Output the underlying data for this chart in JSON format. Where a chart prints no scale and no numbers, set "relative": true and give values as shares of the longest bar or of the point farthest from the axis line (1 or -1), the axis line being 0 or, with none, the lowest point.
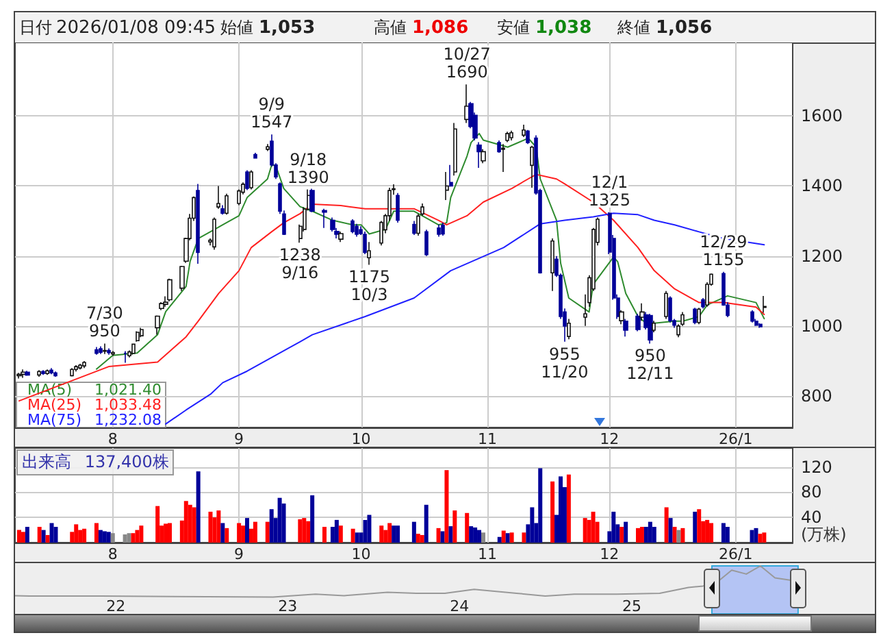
{
  "chart_data": [
    {
      "type": "candlestick",
      "x": [
        "2025-07-09",
        "2025-07-10",
        "2025-07-11",
        "2025-07-14",
        "2025-07-15",
        "2025-07-16",
        "2025-07-17",
        "2025-07-18",
        "2025-07-22",
        "2025-07-23",
        "2025-07-24",
        "2025-07-25",
        "2025-07-28",
        "2025-07-29",
        "2025-07-30",
        "2025-07-31",
        "2025-08-01",
        "2025-08-04",
        "2025-08-05",
        "2025-08-06",
        "2025-08-07",
        "2025-08-08",
        "2025-08-12",
        "2025-08-13",
        "2025-08-14",
        "2025-08-15",
        "2025-08-18",
        "2025-08-19",
        "2025-08-20",
        "2025-08-21",
        "2025-08-22",
        "2025-08-25",
        "2025-08-26",
        "2025-08-27",
        "2025-08-28",
        "2025-08-29",
        "2025-09-01",
        "2025-09-02",
        "2025-09-03",
        "2025-09-04",
        "2025-09-05",
        "2025-09-08",
        "2025-09-09",
        "2025-09-10",
        "2025-09-11",
        "2025-09-12",
        "2025-09-16",
        "2025-09-17",
        "2025-09-18",
        "2025-09-19",
        "2025-09-22",
        "2025-09-24",
        "2025-09-25",
        "2025-09-26",
        "2025-09-29",
        "2025-09-30",
        "2025-10-01",
        "2025-10-02",
        "2025-10-03",
        "2025-10-06",
        "2025-10-07",
        "2025-10-08",
        "2025-10-09",
        "2025-10-10",
        "2025-10-14",
        "2025-10-15",
        "2025-10-16",
        "2025-10-17",
        "2025-10-20",
        "2025-10-21",
        "2025-10-22",
        "2025-10-23",
        "2025-10-24",
        "2025-10-27",
        "2025-10-28",
        "2025-10-29",
        "2025-10-30",
        "2025-10-31",
        "2025-11-04",
        "2025-11-05",
        "2025-11-06",
        "2025-11-07",
        "2025-11-10",
        "2025-11-11",
        "2025-11-12",
        "2025-11-13",
        "2025-11-14",
        "2025-11-17",
        "2025-11-18",
        "2025-11-19",
        "2025-11-20",
        "2025-11-21",
        "2025-11-25",
        "2025-11-26",
        "2025-11-27",
        "2025-11-28",
        "2025-12-01",
        "2025-12-02",
        "2025-12-03",
        "2025-12-04",
        "2025-12-05",
        "2025-12-08",
        "2025-12-09",
        "2025-12-10",
        "2025-12-11",
        "2025-12-12",
        "2025-12-15",
        "2025-12-16",
        "2025-12-17",
        "2025-12-18",
        "2025-12-19",
        "2025-12-22",
        "2025-12-23",
        "2025-12-24",
        "2025-12-25",
        "2025-12-26",
        "2025-12-29",
        "2025-12-30",
        "2026-01-05",
        "2026-01-06",
        "2026-01-07",
        "2026-01-08"
      ],
      "ohlc": [
        [
          858,
          866,
          850,
          862
        ],
        [
          862,
          876,
          852,
          868
        ],
        [
          868,
          872,
          858,
          860
        ],
        [
          860,
          874,
          855,
          870
        ],
        [
          870,
          874,
          860,
          864
        ],
        [
          864,
          876,
          860,
          872
        ],
        [
          874,
          880,
          862,
          866
        ],
        [
          866,
          870,
          855,
          858
        ],
        [
          858,
          880,
          856,
          876
        ],
        [
          876,
          888,
          870,
          884
        ],
        [
          880,
          892,
          876,
          888
        ],
        [
          886,
          900,
          880,
          896
        ],
        [
          932,
          940,
          918,
          922
        ],
        [
          935,
          942,
          920,
          925
        ],
        [
          928,
          950,
          920,
          930
        ],
        [
          930,
          936,
          918,
          924
        ],
        [
          920,
          928,
          915,
          924
        ],
        [
          922,
          928,
          895,
          922
        ],
        [
          915,
          930,
          910,
          926
        ],
        [
          922,
          950,
          918,
          948
        ],
        [
          958,
          985,
          955,
          982
        ],
        [
          972,
          995,
          968,
          990
        ],
        [
          995,
          1030,
          975,
          1028
        ],
        [
          1050,
          1068,
          1045,
          1064
        ],
        [
          1062,
          1085,
          1055,
          1068
        ],
        [
          1075,
          1135,
          1070,
          1132
        ],
        [
          1108,
          1172,
          1100,
          1170
        ],
        [
          1185,
          1252,
          1180,
          1250
        ],
        [
          1250,
          1320,
          1245,
          1308
        ],
        [
          1308,
          1370,
          1300,
          1367
        ],
        [
          1387,
          1406,
          1178,
          1210
        ],
        [
          1240,
          1250,
          1230,
          1245
        ],
        [
          1226,
          1310,
          1218,
          1305
        ],
        [
          1340,
          1400,
          1335,
          1350
        ],
        [
          1335,
          1345,
          1318,
          1322
        ],
        [
          1322,
          1378,
          1318,
          1372
        ],
        [
          1350,
          1390,
          1345,
          1386
        ],
        [
          1382,
          1410,
          1376,
          1405
        ],
        [
          1440,
          1445,
          1388,
          1393
        ],
        [
          1395,
          1445,
          1390,
          1440
        ],
        [
          1490,
          1495,
          1478,
          1480
        ],
        [
          1505,
          1520,
          1500,
          1512
        ],
        [
          1528,
          1547,
          1455,
          1460
        ],
        [
          1460,
          1465,
          1420,
          1426
        ],
        [
          1406,
          1410,
          1320,
          1328
        ],
        [
          1320,
          1330,
          1260,
          1262
        ],
        [
          1250,
          1290,
          1238,
          1285
        ],
        [
          1276,
          1340,
          1270,
          1334
        ],
        [
          1334,
          1390,
          1330,
          1373
        ],
        [
          1387,
          1392,
          1325,
          1328
        ],
        [
          1330,
          1335,
          1280,
          1325
        ],
        [
          1302,
          1310,
          1270,
          1276
        ],
        [
          1270,
          1280,
          1250,
          1262
        ],
        [
          1248,
          1270,
          1240,
          1264
        ],
        [
          1300,
          1305,
          1265,
          1270
        ],
        [
          1285,
          1292,
          1255,
          1262
        ],
        [
          1275,
          1285,
          1260,
          1264
        ],
        [
          1262,
          1270,
          1205,
          1210
        ],
        [
          1195,
          1240,
          1175,
          1215
        ],
        [
          1237,
          1300,
          1230,
          1296
        ],
        [
          1275,
          1320,
          1265,
          1315
        ],
        [
          1315,
          1395,
          1300,
          1387
        ],
        [
          1390,
          1405,
          1375,
          1392
        ],
        [
          1373,
          1380,
          1295,
          1302
        ],
        [
          1290,
          1300,
          1260,
          1265
        ],
        [
          1265,
          1320,
          1258,
          1314
        ],
        [
          1320,
          1350,
          1315,
          1340
        ],
        [
          1269,
          1275,
          1200,
          1204
        ],
        [
          1280,
          1290,
          1255,
          1262
        ],
        [
          1288,
          1295,
          1258,
          1263
        ],
        [
          1388,
          1440,
          1360,
          1400
        ],
        [
          1410,
          1460,
          1398,
          1400
        ],
        [
          1440,
          1580,
          1430,
          1563
        ],
        [
          1590,
          1690,
          1580,
          1628
        ],
        [
          1635,
          1640,
          1565,
          1570
        ],
        [
          1602,
          1610,
          1530,
          1537
        ],
        [
          1517,
          1525,
          1452,
          1498
        ],
        [
          1472,
          1505,
          1465,
          1498
        ],
        [
          1524,
          1530,
          1495,
          1498
        ],
        [
          1505,
          1520,
          1440,
          1508
        ],
        [
          1530,
          1555,
          1525,
          1550
        ],
        [
          1538,
          1558,
          1530,
          1552
        ],
        [
          1545,
          1575,
          1540,
          1560
        ],
        [
          1557,
          1560,
          1520,
          1524
        ],
        [
          1459,
          1515,
          1395,
          1511
        ],
        [
          1537,
          1545,
          1375,
          1380
        ],
        [
          1387,
          1392,
          1150,
          1152
        ],
        [
          1152,
          1250,
          1100,
          1243
        ],
        [
          1191,
          1200,
          1140,
          1145
        ],
        [
          1145,
          1150,
          1020,
          1027
        ],
        [
          1040,
          1050,
          955,
          1000
        ],
        [
          970,
          1020,
          962,
          1008
        ],
        [
          1025,
          1090,
          1000,
          1035
        ],
        [
          1067,
          1145,
          1055,
          1138
        ],
        [
          1106,
          1280,
          1100,
          1276
        ],
        [
          1239,
          1310,
          1230,
          1305
        ],
        [
          1322,
          1325,
          1205,
          1211
        ],
        [
          1250,
          1260,
          1075,
          1080
        ],
        [
          1080,
          1090,
          1020,
          1027
        ],
        [
          1015,
          1045,
          1005,
          1040
        ],
        [
          1014,
          1020,
          970,
          988
        ],
        [
          1028,
          1035,
          985,
          990
        ],
        [
          1025,
          1065,
          1015,
          1040
        ],
        [
          1032,
          1040,
          990,
          996
        ],
        [
          1030,
          1035,
          950,
          960
        ],
        [
          988,
          1015,
          982,
          1008
        ],
        [
          1027,
          1100,
          1020,
          1093
        ],
        [
          1080,
          1085,
          1010,
          1015
        ],
        [
          1015,
          1020,
          995,
          1002
        ],
        [
          975,
          1005,
          968,
          1000
        ],
        [
          1005,
          1040,
          1000,
          1032
        ],
        [
          1048,
          1052,
          1005,
          1010
        ],
        [
          1010,
          1052,
          1005,
          1048
        ],
        [
          1075,
          1080,
          1050,
          1055
        ],
        [
          1060,
          1125,
          1055,
          1119
        ],
        [
          1119,
          1150,
          1115,
          1148
        ],
        [
          1150,
          1155,
          1058,
          1060
        ],
        [
          1060,
          1068,
          1025,
          1030
        ],
        [
          1040,
          1045,
          1010,
          1014
        ],
        [
          1014,
          1020,
          1000,
          1002
        ],
        [
          1005,
          1008,
          995,
          998
        ],
        [
          1053,
          1086,
          1038,
          1056
        ]
      ],
      "series": [
        {
          "name": "MA(5)",
          "type": "line",
          "color": "#2e8b2e",
          "x": [
            "2025-07-28",
            "2025-08-01",
            "2025-08-07",
            "2025-08-12",
            "2025-08-14",
            "2025-08-19",
            "2025-08-20",
            "2025-08-22",
            "2025-08-26",
            "2025-08-28",
            "2025-09-01",
            "2025-09-03",
            "2025-09-08",
            "2025-09-09",
            "2025-09-10",
            "2025-09-12",
            "2025-09-16",
            "2025-09-19",
            "2025-09-24",
            "2025-09-29",
            "2025-10-01",
            "2025-10-03",
            "2025-10-07",
            "2025-10-09",
            "2025-10-14",
            "2025-10-16",
            "2025-10-20",
            "2025-10-22",
            "2025-10-23",
            "2025-10-27",
            "2025-10-28",
            "2025-10-30",
            "2025-10-31",
            "2025-11-06",
            "2025-11-10",
            "2025-11-11",
            "2025-11-13",
            "2025-11-14",
            "2025-11-18",
            "2025-11-19",
            "2025-11-21",
            "2025-11-26",
            "2025-11-27",
            "2025-12-02",
            "2025-12-03",
            "2025-12-05",
            "2025-12-08",
            "2025-12-10",
            "2025-12-12",
            "2025-12-17",
            "2025-12-19",
            "2025-12-23",
            "2025-12-25",
            "2025-12-30",
            "2026-01-06",
            "2026-01-08"
          ],
          "values": [
            877,
            916,
            923,
            975,
            1041,
            1113,
            1185,
            1250,
            1276,
            1289,
            1315,
            1367,
            1420,
            1459,
            1459,
            1393,
            1341,
            1328,
            1302,
            1289,
            1289,
            1263,
            1276,
            1328,
            1328,
            1315,
            1289,
            1295,
            1367,
            1485,
            1524,
            1550,
            1531,
            1511,
            1531,
            1537,
            1511,
            1420,
            1302,
            1180,
            1080,
            1040,
            1119,
            1197,
            1184,
            1093,
            1027,
            1008,
            1008,
            1014,
            1014,
            1027,
            1060,
            1086,
            1067,
            1021
          ]
        },
        {
          "name": "MA(25)",
          "type": "line",
          "color": "#ff2020",
          "x": [
            "2025-07-09",
            "2025-07-31",
            "2025-08-12",
            "2025-08-19",
            "2025-08-22",
            "2025-08-27",
            "2025-09-01",
            "2025-09-04",
            "2025-09-09",
            "2025-09-12",
            "2025-09-16",
            "2025-09-19",
            "2025-09-26",
            "2025-10-02",
            "2025-10-07",
            "2025-10-14",
            "2025-10-20",
            "2025-10-22",
            "2025-10-27",
            "2025-10-31",
            "2025-11-07",
            "2025-11-11",
            "2025-11-13",
            "2025-11-18",
            "2025-11-20",
            "2025-11-27",
            "2025-12-02",
            "2025-12-08",
            "2025-12-12",
            "2025-12-17",
            "2025-12-23",
            "2025-12-29",
            "2026-01-06",
            "2026-01-08"
          ],
          "values": [
            786,
            884,
            897,
            969,
            1014,
            1093,
            1158,
            1224,
            1269,
            1295,
            1321,
            1348,
            1344,
            1335,
            1335,
            1335,
            1302,
            1289,
            1315,
            1354,
            1393,
            1420,
            1433,
            1420,
            1406,
            1354,
            1302,
            1224,
            1158,
            1106,
            1067,
            1067,
            1054,
            1033
          ]
        },
        {
          "name": "MA(75)",
          "type": "line",
          "color": "#2020ff",
          "x": [
            "2025-08-14",
            "2025-08-19",
            "2025-08-25",
            "2025-08-28",
            "2025-09-03",
            "2025-09-09",
            "2025-09-16",
            "2025-09-19",
            "2025-10-02",
            "2025-10-14",
            "2025-10-23",
            "2025-11-05",
            "2025-11-14",
            "2025-11-20",
            "2025-11-27",
            "2025-12-02",
            "2025-12-08",
            "2025-12-12",
            "2025-12-17",
            "2025-12-23",
            "2025-12-29",
            "2026-01-08"
          ],
          "values": [
            720,
            760,
            805,
            838,
            871,
            910,
            955,
            975,
            1027,
            1080,
            1158,
            1224,
            1292,
            1302,
            1312,
            1322,
            1318,
            1302,
            1289,
            1269,
            1250,
            1232
          ]
        }
      ],
      "xlim": [
        "2025-07-08",
        "2026-01-15"
      ],
      "xticks": [
        {
          "value": "2025-08-01",
          "label": "8"
        },
        {
          "value": "2025-09-01",
          "label": "9"
        },
        {
          "value": "2025-10-01",
          "label": "10"
        },
        {
          "value": "2025-11-01",
          "label": "11"
        },
        {
          "value": "2025-12-01",
          "label": "12"
        },
        {
          "value": "2026-01-01",
          "label": "26/1"
        }
      ],
      "ylim": [
        710,
        1810
      ],
      "yticks": [
        800,
        1000,
        1200,
        1400,
        1600
      ],
      "grid": true,
      "legend": "bottom left",
      "marker": "none",
      "annotations": [
        "日付 2026/01/08 09:45",
        "始値 1,053",
        "高値 1,086",
        "安値 1,038",
        "終値 1,056",
        "1,021.40",
        "1,033.48",
        "1,232.08",
        {
          "text": "7/30\n950",
          "x": "2025-07-30",
          "y": 950
        },
        {
          "text": "9/9\n1547",
          "x": "2025-09-09",
          "y": 1547
        },
        {
          "text": "9/18\n1390",
          "x": "2025-09-18",
          "y": 1390
        },
        {
          "text": "1238\n9/16",
          "x": "2025-09-16",
          "y": 1238
        },
        {
          "text": "1175\n10/3",
          "x": "2025-10-03",
          "y": 1175
        },
        {
          "text": "10/27\n1690",
          "x": "2025-10-27",
          "y": 1690
        },
        {
          "text": "955\n11/20",
          "x": "2025-11-20",
          "y": 955
        },
        {
          "text": "12/1\n1325",
          "x": "2025-12-01",
          "y": 1325
        },
        {
          "text": "950\n12/11",
          "x": "2025-12-11",
          "y": 950
        },
        {
          "text": "12/29\n1155",
          "x": "2025-12-29",
          "y": 1155
        }
      ]
    },
    {
      "type": "bar",
      "x": [
        "2025-07-09",
        "2025-07-10",
        "2025-07-11",
        "2025-07-14",
        "2025-07-15",
        "2025-07-16",
        "2025-07-17",
        "2025-07-18",
        "2025-07-22",
        "2025-07-23",
        "2025-07-24",
        "2025-07-25",
        "2025-07-28",
        "2025-07-29",
        "2025-07-30",
        "2025-07-31",
        "2025-08-01",
        "2025-08-04",
        "2025-08-05",
        "2025-08-06",
        "2025-08-07",
        "2025-08-08",
        "2025-08-12",
        "2025-08-13",
        "2025-08-14",
        "2025-08-15",
        "2025-08-18",
        "2025-08-19",
        "2025-08-20",
        "2025-08-21",
        "2025-08-22",
        "2025-08-25",
        "2025-08-26",
        "2025-08-27",
        "2025-08-28",
        "2025-08-29",
        "2025-09-01",
        "2025-09-02",
        "2025-09-03",
        "2025-09-04",
        "2025-09-05",
        "2025-09-08",
        "2025-09-09",
        "2025-09-10",
        "2025-09-11",
        "2025-09-12",
        "2025-09-16",
        "2025-09-17",
        "2025-09-18",
        "2025-09-19",
        "2025-09-22",
        "2025-09-24",
        "2025-09-25",
        "2025-09-26",
        "2025-09-29",
        "2025-09-30",
        "2025-10-01",
        "2025-10-02",
        "2025-10-03",
        "2025-10-06",
        "2025-10-07",
        "2025-10-08",
        "2025-10-09",
        "2025-10-10",
        "2025-10-14",
        "2025-10-15",
        "2025-10-16",
        "2025-10-17",
        "2025-10-20",
        "2025-10-21",
        "2025-10-22",
        "2025-10-23",
        "2025-10-24",
        "2025-10-27",
        "2025-10-28",
        "2025-10-29",
        "2025-10-30",
        "2025-10-31",
        "2025-11-04",
        "2025-11-05",
        "2025-11-06",
        "2025-11-07",
        "2025-11-10",
        "2025-11-11",
        "2025-11-12",
        "2025-11-13",
        "2025-11-14",
        "2025-11-17",
        "2025-11-18",
        "2025-11-19",
        "2025-11-20",
        "2025-11-21",
        "2025-11-25",
        "2025-11-26",
        "2025-11-27",
        "2025-11-28",
        "2025-12-01",
        "2025-12-02",
        "2025-12-03",
        "2025-12-04",
        "2025-12-05",
        "2025-12-08",
        "2025-12-09",
        "2025-12-10",
        "2025-12-11",
        "2025-12-12",
        "2025-12-15",
        "2025-12-16",
        "2025-12-17",
        "2025-12-18",
        "2025-12-19",
        "2025-12-22",
        "2025-12-23",
        "2025-12-24",
        "2025-12-25",
        "2025-12-26",
        "2025-12-29",
        "2025-12-30",
        "2026-01-05",
        "2026-01-06",
        "2026-01-07",
        "2026-01-08"
      ],
      "values": [
        20,
        17,
        25,
        25,
        20,
        12,
        31,
        25,
        17,
        29,
        20,
        22,
        31,
        20,
        18,
        17,
        15,
        13,
        15,
        15,
        20,
        27,
        58,
        27,
        30,
        31,
        35,
        66,
        60,
        56,
        113,
        49,
        40,
        51,
        31,
        23,
        31,
        27,
        39,
        22,
        33,
        33,
        53,
        39,
        71,
        62,
        37,
        39,
        34,
        75,
        25,
        25,
        36,
        27,
        22,
        16,
        16,
        36,
        44,
        27,
        20,
        31,
        27,
        27,
        33,
        14,
        12,
        60,
        23,
        18,
        115,
        26,
        51,
        47,
        26,
        24,
        20,
        16,
        9,
        19,
        15,
        16,
        16,
        29,
        56,
        31,
        118,
        97,
        44,
        105,
        88,
        108,
        39,
        36,
        49,
        33,
        18,
        49,
        29,
        25,
        33,
        23,
        25,
        25,
        33,
        25,
        56,
        39,
        25,
        20,
        23,
        49,
        53,
        34,
        36,
        31,
        31,
        25,
        20,
        23,
        14,
        16
      ],
      "colors": [
        "#ff0000",
        "#ff0000",
        "#000099",
        "#ff0000",
        "#000099",
        "#ff0000",
        "#000099",
        "#000099",
        "#ff0000",
        "#ff0000",
        "#ff0000",
        "#ff0000",
        "#ff0000",
        "#000099",
        "#000099",
        "#000099",
        "#888888",
        "#888888",
        "#888888",
        "#ff0000",
        "#ff0000",
        "#ff0000",
        "#ff0000",
        "#ff0000",
        "#ff0000",
        "#ff0000",
        "#ff0000",
        "#ff0000",
        "#ff0000",
        "#ff0000",
        "#000099",
        "#ff0000",
        "#ff0000",
        "#ff0000",
        "#000099",
        "#ff0000",
        "#ff0000",
        "#ff0000",
        "#000099",
        "#ff0000",
        "#ff0000",
        "#ff0000",
        "#000099",
        "#000099",
        "#000099",
        "#000099",
        "#ff0000",
        "#ff0000",
        "#ff0000",
        "#000099",
        "#ff0000",
        "#000099",
        "#000099",
        "#ff0000",
        "#ff0000",
        "#000099",
        "#000099",
        "#000099",
        "#000099",
        "#ff0000",
        "#ff0000",
        "#ff0000",
        "#000099",
        "#000099",
        "#000099",
        "#ff0000",
        "#ff0000",
        "#000099",
        "#ff0000",
        "#000099",
        "#ff0000",
        "#000099",
        "#ff0000",
        "#ff0000",
        "#000099",
        "#000099",
        "#000099",
        "#888888",
        "#000099",
        "#ff0000",
        "#000099",
        "#ff0000",
        "#ff0000",
        "#000099",
        "#000099",
        "#000099",
        "#000099",
        "#ff0000",
        "#000099",
        "#000099",
        "#000099",
        "#ff0000",
        "#ff0000",
        "#ff0000",
        "#ff0000",
        "#ff0000",
        "#000099",
        "#000099",
        "#000099",
        "#ff0000",
        "#000099",
        "#ff0000",
        "#ff0000",
        "#000099",
        "#000099",
        "#000099",
        "#ff0000",
        "#000099",
        "#ff0000",
        "#888888",
        "#ff0000",
        "#000099",
        "#ff0000",
        "#ff0000",
        "#ff0000",
        "#ff0000",
        "#000099",
        "#000099",
        "#000099",
        "#000099",
        "#ff0000",
        "#ff0000"
      ],
      "xlim": [
        "2025-07-08",
        "2026-01-15"
      ],
      "xticks": [
        {
          "value": "2025-08-01",
          "label": "8"
        },
        {
          "value": "2025-09-01",
          "label": "9"
        },
        {
          "value": "2025-10-01",
          "label": "10"
        },
        {
          "value": "2025-11-01",
          "label": "11"
        },
        {
          "value": "2025-12-01",
          "label": "12"
        },
        {
          "value": "2026-01-01",
          "label": "26/1"
        }
      ],
      "ylim": [
        0,
        150
      ],
      "yticks": [
        40,
        80,
        120
      ],
      "ylabel": "(万株)",
      "grid": true,
      "annotations": [
        "出来高 137,400株"
      ]
    },
    {
      "type": "line",
      "relative": true,
      "color": "#999999",
      "x": [
        "2021-06",
        "2021-07",
        "2021-12",
        "2022-12",
        "2023-03",
        "2023-05",
        "2023-08",
        "2023-10",
        "2023-12",
        "2024-02",
        "2024-05",
        "2024-07",
        "2024-09",
        "2024-12",
        "2025-03",
        "2025-05",
        "2025-06",
        "2025-07",
        "2025-08",
        "2025-09",
        "2025-10",
        "2025-11",
        "2026-01"
      ],
      "values": [
        0.38,
        0.37,
        0.37,
        0.35,
        0.41,
        0.38,
        0.45,
        0.43,
        0.43,
        0.51,
        0.43,
        0.37,
        0.41,
        0.41,
        0.43,
        0.55,
        0.58,
        0.66,
        0.91,
        0.83,
        1,
        0.75,
        0.66
      ],
      "xlim": [
        "2021-06",
        "2026-06"
      ],
      "xticks": [
        {
          "value": "2022-01-01",
          "label": "22"
        },
        {
          "value": "2023-01-01",
          "label": "23"
        },
        {
          "value": "2024-01-01",
          "label": "24"
        },
        {
          "value": "2025-01-01",
          "label": "25"
        }
      ],
      "bands": [
        {
          "axis": "x",
          "from": "2025-06-20",
          "to": "2025-12-20",
          "color": "#b4c4f4"
        }
      ]
    }
  ]
}
